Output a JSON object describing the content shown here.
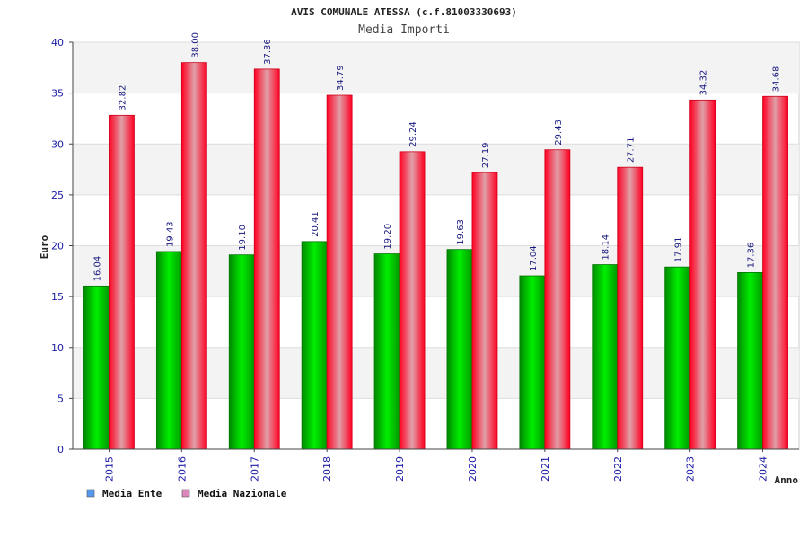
{
  "chart_data": {
    "type": "bar",
    "title": "AVIS COMUNALE ATESSA (c.f.81003330693)",
    "subtitle": "Media Importi",
    "xlabel": "Anno",
    "ylabel": "Euro",
    "ylim": [
      0,
      40
    ],
    "yticks": [
      0,
      5,
      10,
      15,
      20,
      25,
      30,
      35,
      40
    ],
    "categories": [
      "2015",
      "2016",
      "2017",
      "2018",
      "2019",
      "2020",
      "2021",
      "2022",
      "2023",
      "2024"
    ],
    "series": [
      {
        "name": "Media Ente",
        "color": "#00cc00",
        "legend_color": "#5599ee",
        "values": [
          16.04,
          19.43,
          19.1,
          20.41,
          19.2,
          19.63,
          17.04,
          18.14,
          17.91,
          17.36
        ],
        "labels": [
          "16.04",
          "19.43",
          "19.10",
          "20.41",
          "19.20",
          "19.63",
          "17.04",
          "18.14",
          "17.91",
          "17.36"
        ]
      },
      {
        "name": "Media Nazionale",
        "color": "#ee0022",
        "legend_color": "#dd88bb",
        "values": [
          32.82,
          38.0,
          37.36,
          34.79,
          29.24,
          27.19,
          29.43,
          27.71,
          34.32,
          34.68
        ],
        "labels": [
          "32.82",
          "38.00",
          "37.36",
          "34.79",
          "29.24",
          "27.19",
          "29.43",
          "27.71",
          "34.32",
          "34.68"
        ]
      }
    ],
    "grid": true,
    "legend": "bottom-left"
  }
}
